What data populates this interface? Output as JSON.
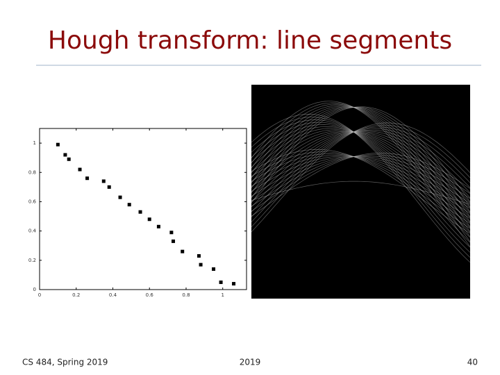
{
  "title": "Hough transform: line segments",
  "footer": {
    "left": "CS 484, Spring 2019",
    "center": "2019",
    "page": "40"
  },
  "chart_data": {
    "type": "scatter",
    "x": [
      0.1,
      0.14,
      0.16,
      0.22,
      0.26,
      0.35,
      0.38,
      0.44,
      0.49,
      0.55,
      0.6,
      0.65,
      0.72,
      0.73,
      0.78,
      0.87,
      0.88,
      0.95,
      0.99,
      1.06
    ],
    "values": [
      0.99,
      0.92,
      0.89,
      0.82,
      0.76,
      0.74,
      0.7,
      0.63,
      0.58,
      0.53,
      0.48,
      0.43,
      0.39,
      0.33,
      0.26,
      0.23,
      0.17,
      0.14,
      0.05,
      0.04
    ],
    "color": "#000000",
    "xlim": [
      0,
      1.13
    ],
    "ylim": [
      0,
      1.1
    ],
    "xticks": [
      0,
      0.2,
      0.4,
      0.6,
      0.8,
      1
    ],
    "yticks": [
      0,
      0.2,
      0.4,
      0.6,
      0.8,
      1
    ]
  }
}
